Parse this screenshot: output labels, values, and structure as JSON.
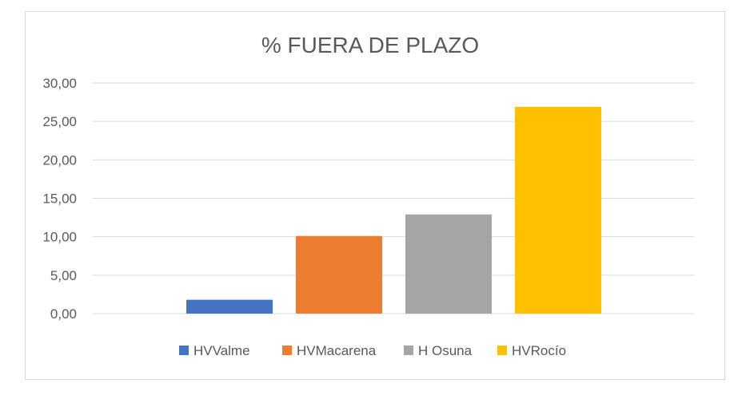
{
  "chart_data": {
    "type": "bar",
    "title": "% FUERA DE PLAZO",
    "categories": [
      "HVValme",
      "HVMacarena",
      "H Osuna",
      "HVRocío"
    ],
    "values": [
      1.8,
      10.1,
      12.9,
      26.9
    ],
    "colors": [
      "#4472c4",
      "#ed7d31",
      "#a5a5a5",
      "#ffc000"
    ],
    "ylim": [
      0,
      30
    ],
    "yticks": [
      "0,00",
      "5,00",
      "10,00",
      "15,00",
      "20,00",
      "25,00",
      "30,00"
    ],
    "ytick_values": [
      0,
      5,
      10,
      15,
      20,
      25,
      30
    ],
    "grid": true,
    "legend": {
      "position": "bottom",
      "entries": [
        "HVValme",
        "HVMacarena",
        "H Osuna",
        "HVRocío"
      ]
    },
    "xlabel": "",
    "ylabel": ""
  }
}
